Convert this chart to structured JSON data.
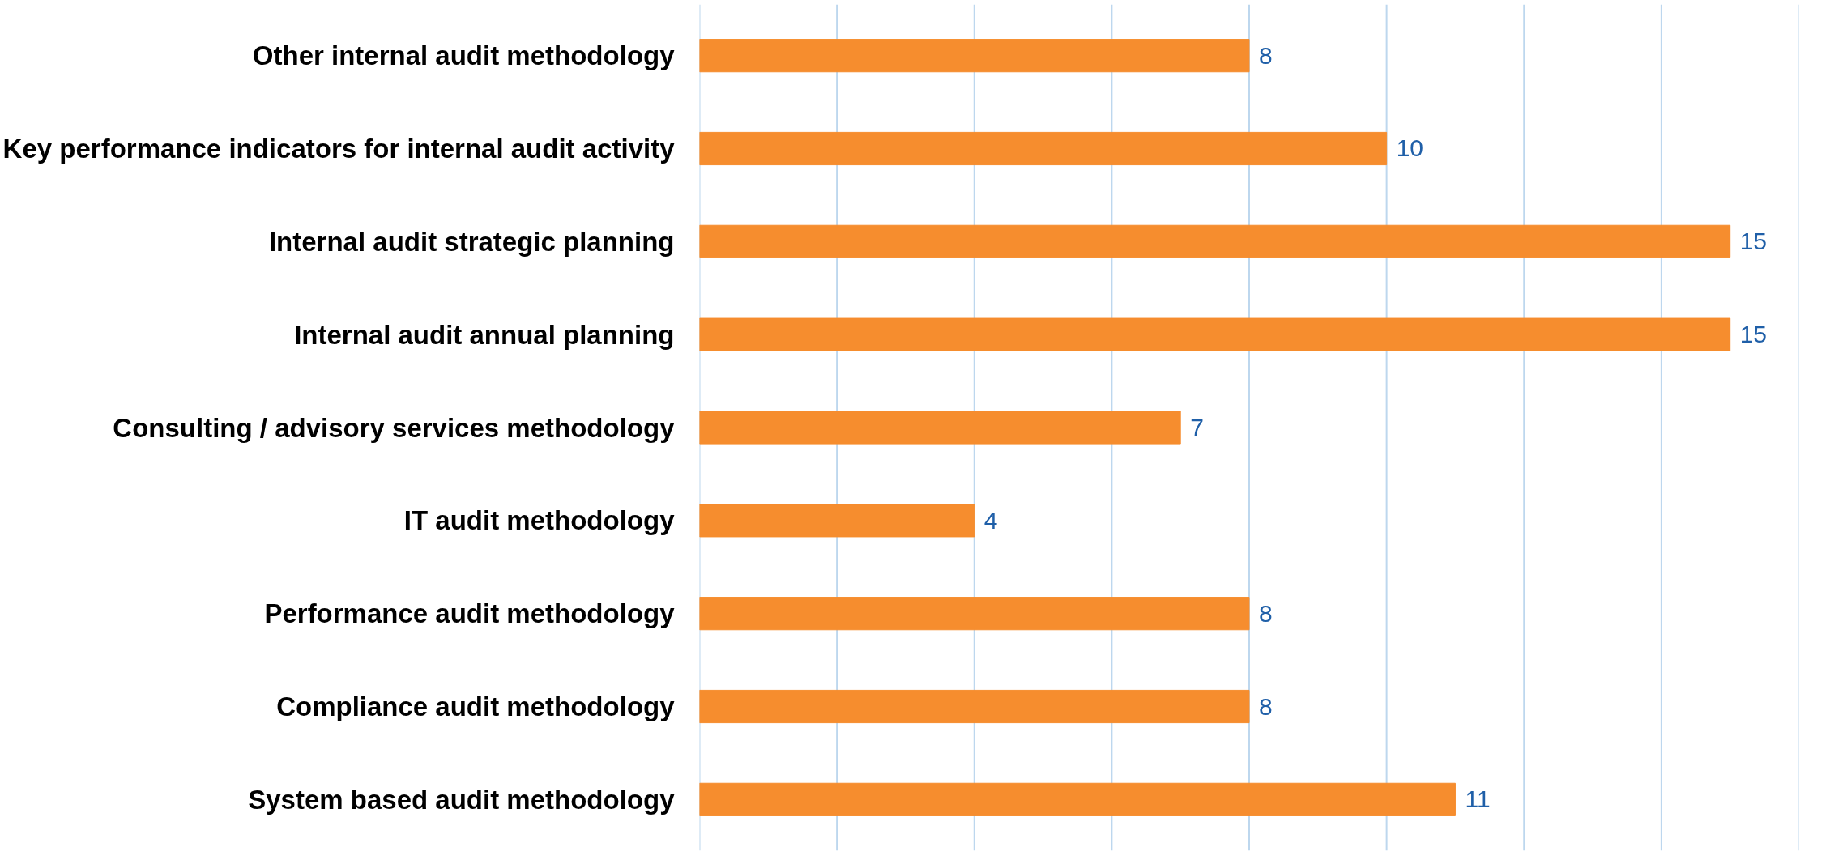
{
  "chart_data": {
    "type": "bar",
    "orientation": "horizontal",
    "categories": [
      "Other internal audit methodology",
      "Key performance indicators for internal audit activity",
      "Internal audit strategic planning",
      "Internal audit annual planning",
      "Consulting / advisory services methodology",
      "IT audit methodology",
      "Performance audit methodology",
      "Compliance audit methodology",
      "System based audit methodology"
    ],
    "values": [
      8,
      10,
      15,
      15,
      7,
      4,
      8,
      8,
      11
    ],
    "color": "#f68d2e",
    "xlim": [
      0,
      16
    ],
    "xticks": [
      {
        "value": 0,
        "label": null
      },
      {
        "value": 2,
        "label": null
      },
      {
        "value": 4,
        "label": null
      },
      {
        "value": 6,
        "label": null
      },
      {
        "value": 8,
        "label": null
      },
      {
        "value": 10,
        "label": null
      },
      {
        "value": 12,
        "label": null
      },
      {
        "value": 14,
        "label": null
      },
      {
        "value": 16,
        "label": null
      }
    ],
    "grid": "x",
    "legend": false,
    "tick_labels": "y",
    "data_labels": true
  }
}
